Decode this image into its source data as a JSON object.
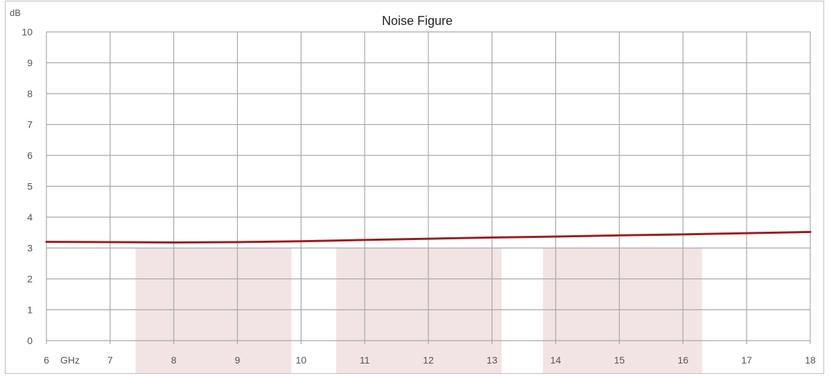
{
  "chart_data": {
    "type": "line",
    "title": "Noise Figure",
    "ylabel": "dB",
    "xlabel": "GHz",
    "xlim": [
      6,
      18
    ],
    "ylim": [
      0,
      10
    ],
    "x_ticks": [
      6,
      7,
      8,
      9,
      10,
      11,
      12,
      13,
      14,
      15,
      16,
      17,
      18
    ],
    "y_ticks": [
      0,
      1,
      2,
      3,
      4,
      5,
      6,
      7,
      8,
      9,
      10
    ],
    "grid": true,
    "series": [
      {
        "color": "#9b1c1c",
        "x": [
          6,
          7,
          8,
          9,
          10,
          11,
          12,
          13,
          14,
          15,
          16,
          17,
          18
        ],
        "y": [
          3.2,
          3.19,
          3.18,
          3.19,
          3.22,
          3.26,
          3.3,
          3.34,
          3.37,
          3.41,
          3.44,
          3.48,
          3.52
        ]
      }
    ],
    "shaded_bands": [
      {
        "x": [
          7.4,
          9.85
        ],
        "y": [
          0,
          3
        ],
        "color": "#f2e4e4"
      },
      {
        "x": [
          10.55,
          13.15
        ],
        "y": [
          0,
          3
        ],
        "color": "#f2e4e4"
      },
      {
        "x": [
          13.8,
          16.3
        ],
        "y": [
          0,
          3
        ],
        "color": "#f2e4e4"
      }
    ]
  }
}
